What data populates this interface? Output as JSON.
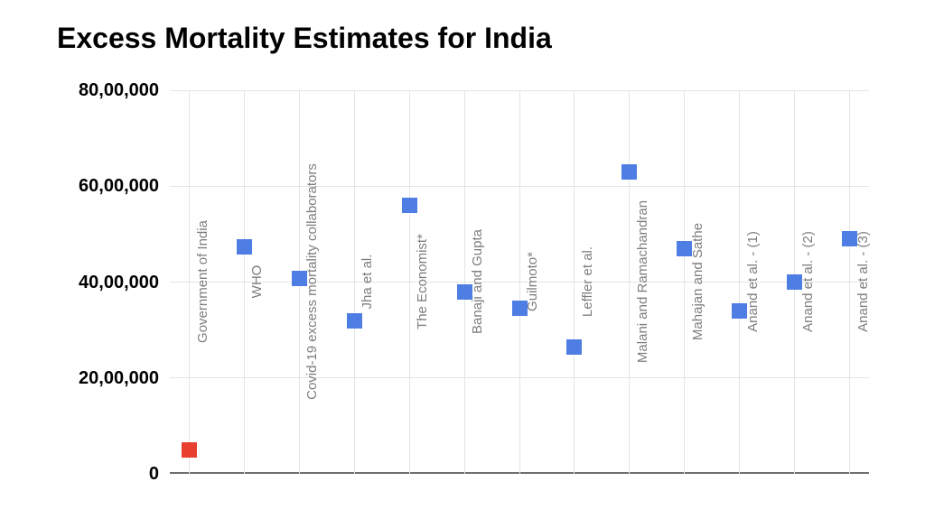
{
  "chart_data": {
    "type": "scatter",
    "title": "Excess Mortality Estimates for India",
    "categories": [
      "Government of India",
      "WHO",
      "Covid-19 excess mortality collaborators",
      "Jha et al.",
      "The Economist*",
      "Banaji and Gupta",
      "Guilmoto*",
      "Leffler et al.",
      "Malani and Ramachandran",
      "Mahajan and Sathe",
      "Anand et al. - (1)",
      "Anand et al. - (2)",
      "Anand et al. - (3)"
    ],
    "values": [
      500000,
      4740000,
      4070000,
      3200000,
      5600000,
      3800000,
      3450000,
      2650000,
      6300000,
      4700000,
      3400000,
      4000000,
      4900000
    ],
    "marker_colors": [
      "#E7402E",
      "#4E7DE3",
      "#4E7DE3",
      "#4E7DE3",
      "#4E7DE3",
      "#4E7DE3",
      "#4E7DE3",
      "#4E7DE3",
      "#4E7DE3",
      "#4E7DE3",
      "#4E7DE3",
      "#4E7DE3",
      "#4E7DE3"
    ],
    "marker_shape": "square",
    "xlabel": "",
    "ylabel": "",
    "ylim": [
      0,
      8000000
    ],
    "ytick_values": [
      0,
      2000000,
      4000000,
      6000000,
      8000000
    ],
    "ytick_labels": [
      "0",
      "20,00,000",
      "40,00,000",
      "60,00,000",
      "80,00,000"
    ],
    "grid": true,
    "legend_position": "none",
    "palette": {
      "title_color": "#000000",
      "gridline_color": "#E4E4E4",
      "axis_line_color": "#6F6F6F",
      "category_label_color": "#7E7E7E",
      "ytick_label_color": "#000000",
      "background": "#ffffff"
    }
  }
}
